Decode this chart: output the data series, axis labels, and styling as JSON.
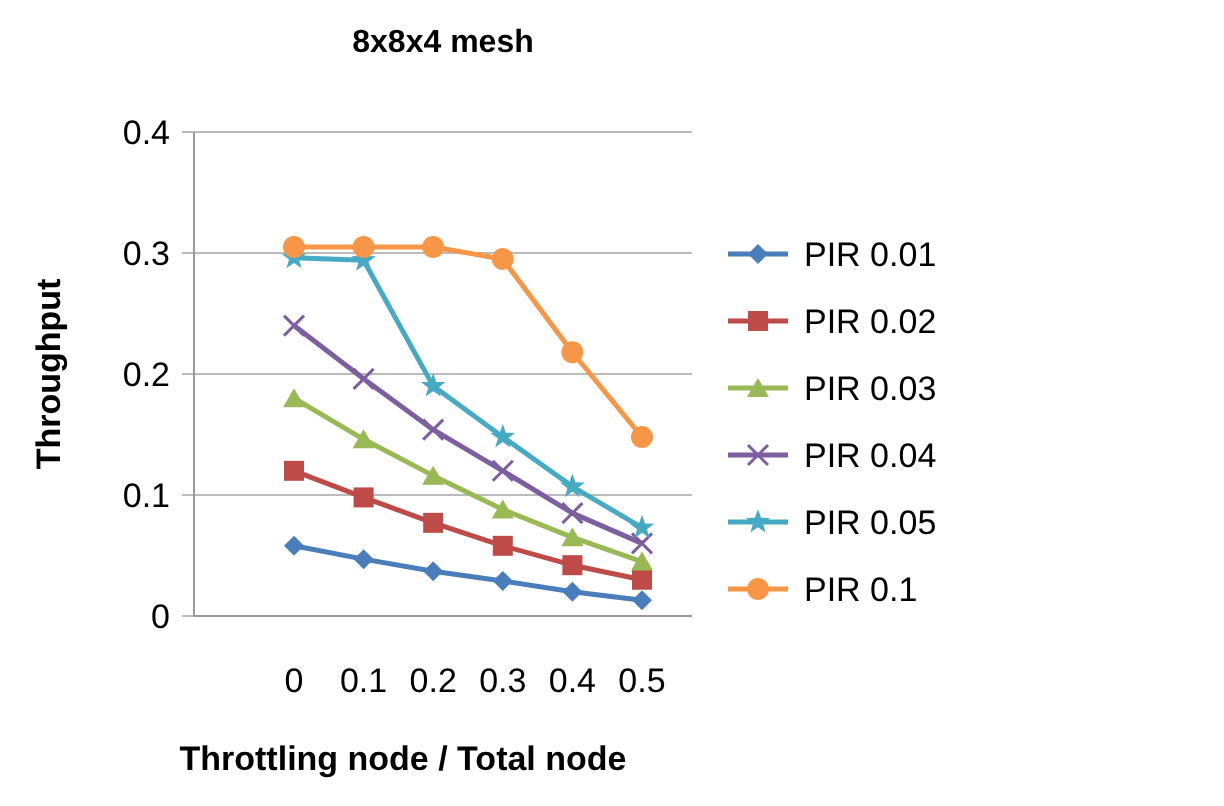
{
  "chart_data": {
    "type": "line",
    "title": "8x8x4 mesh",
    "xlabel": "Throttling  node / Total node",
    "ylabel": "Throughput",
    "categories": [
      "0",
      "0.1",
      "0.2",
      "0.3",
      "0.4",
      "0.5"
    ],
    "series": [
      {
        "name": "PIR 0.01",
        "color": "#4a7ebb",
        "marker": "diamond",
        "values": [
          0.058,
          0.047,
          0.037,
          0.029,
          0.02,
          0.013
        ]
      },
      {
        "name": "PIR 0.02",
        "color": "#be4b48",
        "marker": "square",
        "values": [
          0.12,
          0.098,
          0.077,
          0.058,
          0.042,
          0.03
        ]
      },
      {
        "name": "PIR 0.03",
        "color": "#98b954",
        "marker": "triangle",
        "values": [
          0.18,
          0.146,
          0.116,
          0.088,
          0.065,
          0.045
        ]
      },
      {
        "name": "PIR 0.04",
        "color": "#7d5fa0",
        "marker": "cross",
        "values": [
          0.24,
          0.196,
          0.154,
          0.12,
          0.085,
          0.06
        ]
      },
      {
        "name": "PIR 0.05",
        "color": "#46aac5",
        "marker": "star",
        "values": [
          0.296,
          0.294,
          0.19,
          0.148,
          0.107,
          0.073
        ]
      },
      {
        "name": "PIR 0.1",
        "color": "#f79646",
        "marker": "circle",
        "values": [
          0.305,
          0.305,
          0.305,
          0.295,
          0.218,
          0.148
        ]
      }
    ],
    "ylim": [
      0,
      0.4
    ],
    "yticks": [
      0,
      0.1,
      0.2,
      0.3,
      0.4
    ],
    "grid": "y",
    "legend": "right"
  }
}
